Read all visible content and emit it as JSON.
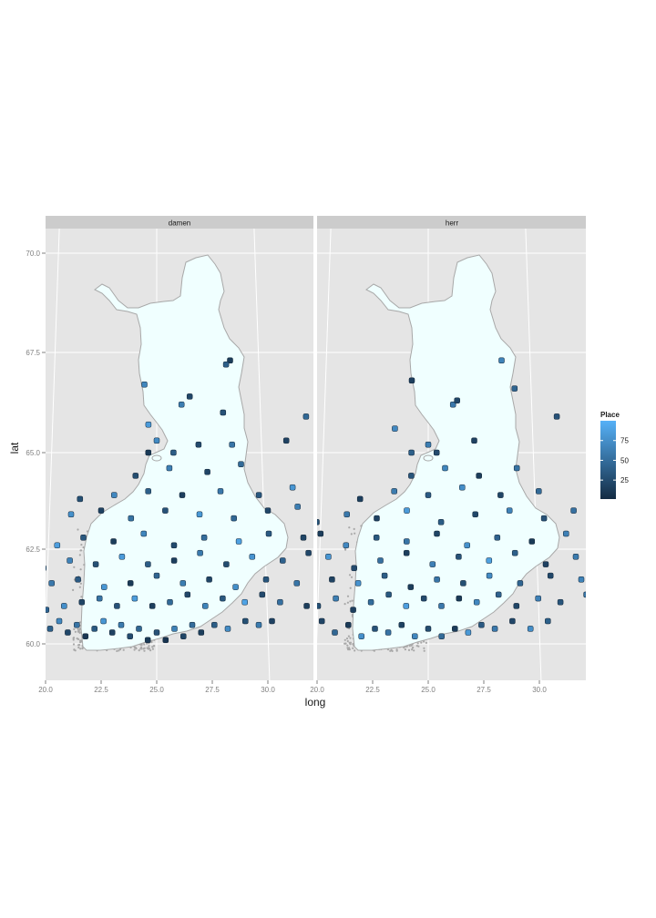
{
  "chart_data": {
    "type": "scatter",
    "facets": [
      "damen",
      "herr"
    ],
    "xlabel": "long",
    "ylabel": "lat",
    "xlim": [
      20.0,
      32.0
    ],
    "ylim": [
      59.2,
      70.8
    ],
    "x_ticks": [
      20.0,
      22.5,
      25.0,
      27.5,
      30.0
    ],
    "y_ticks": [
      60.0,
      62.5,
      65.0,
      67.5,
      70.0
    ],
    "x_tick_labels": [
      "20.0",
      "22.5",
      "25.0",
      "27.5",
      "30.0"
    ],
    "y_tick_labels": [
      "60.0",
      "62.5",
      "65.0",
      "67.5",
      "70.0"
    ],
    "grid": true,
    "background_map": {
      "fill": "#f0ffff",
      "border": "#a8a8a8",
      "archipelago": "#a8a8a8"
    },
    "legend": {
      "title": "Place",
      "placement": "right",
      "ticks": [
        25,
        50,
        75
      ],
      "tick_labels": [
        "25",
        "50",
        "75"
      ],
      "range": [
        1,
        100
      ],
      "color_low": "#132b43",
      "color_high": "#56b1f7"
    },
    "series": [
      {
        "name": "damen",
        "points": [
          [
            22.3,
            60.5,
            15
          ],
          [
            22.6,
            60.4,
            40
          ],
          [
            22.8,
            60.6,
            70
          ],
          [
            23.0,
            60.3,
            22
          ],
          [
            23.2,
            60.5,
            55
          ],
          [
            23.4,
            60.2,
            10
          ],
          [
            23.6,
            60.4,
            35
          ],
          [
            23.8,
            60.6,
            80
          ],
          [
            24.0,
            60.3,
            18
          ],
          [
            24.2,
            60.5,
            60
          ],
          [
            24.4,
            60.2,
            25
          ],
          [
            24.6,
            60.4,
            45
          ],
          [
            24.8,
            60.1,
            12
          ],
          [
            25.0,
            60.3,
            30
          ],
          [
            25.2,
            60.1,
            8
          ],
          [
            25.4,
            60.4,
            65
          ],
          [
            25.6,
            60.2,
            20
          ],
          [
            25.8,
            60.5,
            50
          ],
          [
            26.0,
            60.3,
            15
          ],
          [
            26.3,
            60.5,
            38
          ],
          [
            26.6,
            60.4,
            72
          ],
          [
            27.0,
            60.6,
            28
          ],
          [
            27.3,
            60.5,
            60
          ],
          [
            27.6,
            60.6,
            18
          ],
          [
            22.5,
            60.9,
            42
          ],
          [
            22.9,
            61.0,
            75
          ],
          [
            23.3,
            61.1,
            20
          ],
          [
            23.7,
            61.2,
            55
          ],
          [
            24.1,
            61.0,
            30
          ],
          [
            24.5,
            61.2,
            85
          ],
          [
            24.9,
            61.0,
            16
          ],
          [
            25.3,
            61.1,
            48
          ],
          [
            25.7,
            61.3,
            22
          ],
          [
            26.1,
            61.0,
            66
          ],
          [
            26.5,
            61.2,
            34
          ],
          [
            27.0,
            61.1,
            90
          ],
          [
            27.4,
            61.3,
            24
          ],
          [
            27.8,
            61.1,
            52
          ],
          [
            28.4,
            61.0,
            14
          ],
          [
            28.7,
            61.2,
            70
          ],
          [
            22.2,
            61.4,
            26
          ],
          [
            22.6,
            61.6,
            58
          ],
          [
            23.2,
            61.7,
            36
          ],
          [
            23.8,
            61.5,
            80
          ],
          [
            24.4,
            61.6,
            12
          ],
          [
            25.0,
            61.8,
            44
          ],
          [
            25.6,
            61.6,
            62
          ],
          [
            26.2,
            61.7,
            20
          ],
          [
            26.8,
            61.5,
            74
          ],
          [
            27.5,
            61.7,
            32
          ],
          [
            28.2,
            61.6,
            56
          ],
          [
            28.8,
            61.7,
            18
          ],
          [
            22.4,
            62.0,
            48
          ],
          [
            23.0,
            62.2,
            66
          ],
          [
            23.6,
            62.1,
            28
          ],
          [
            24.2,
            62.3,
            84
          ],
          [
            24.8,
            62.1,
            38
          ],
          [
            25.4,
            62.2,
            16
          ],
          [
            26.0,
            62.4,
            60
          ],
          [
            26.6,
            62.1,
            26
          ],
          [
            27.2,
            62.3,
            78
          ],
          [
            27.9,
            62.2,
            42
          ],
          [
            28.5,
            62.4,
            22
          ],
          [
            29.2,
            62.5,
            64
          ],
          [
            21.8,
            62.3,
            30
          ],
          [
            22.1,
            62.8,
            52
          ],
          [
            22.7,
            62.6,
            86
          ],
          [
            23.3,
            62.8,
            34
          ],
          [
            24.0,
            62.7,
            14
          ],
          [
            24.7,
            62.9,
            68
          ],
          [
            25.4,
            62.6,
            24
          ],
          [
            26.1,
            62.8,
            50
          ],
          [
            26.9,
            62.7,
            88
          ],
          [
            27.6,
            62.9,
            36
          ],
          [
            28.4,
            62.8,
            20
          ],
          [
            29.6,
            62.9,
            58
          ],
          [
            22.3,
            63.2,
            44
          ],
          [
            23.0,
            63.4,
            76
          ],
          [
            23.7,
            63.5,
            18
          ],
          [
            24.4,
            63.3,
            54
          ],
          [
            25.2,
            63.5,
            30
          ],
          [
            26.0,
            63.4,
            82
          ],
          [
            26.8,
            63.3,
            46
          ],
          [
            27.6,
            63.5,
            22
          ],
          [
            28.3,
            63.6,
            62
          ],
          [
            23.2,
            63.8,
            28
          ],
          [
            24.0,
            63.9,
            70
          ],
          [
            24.8,
            64.0,
            40
          ],
          [
            25.6,
            63.9,
            16
          ],
          [
            26.5,
            64.0,
            58
          ],
          [
            27.4,
            63.9,
            34
          ],
          [
            28.2,
            64.1,
            80
          ],
          [
            24.5,
            64.4,
            26
          ],
          [
            25.3,
            64.6,
            64
          ],
          [
            26.2,
            64.5,
            20
          ],
          [
            27.0,
            64.7,
            48
          ],
          [
            24.8,
            65.0,
            12
          ],
          [
            25.4,
            65.0,
            38
          ],
          [
            25.0,
            65.3,
            72
          ],
          [
            26.0,
            65.2,
            24
          ],
          [
            26.8,
            65.2,
            56
          ],
          [
            28.1,
            65.3,
            18
          ],
          [
            24.8,
            65.7,
            84
          ],
          [
            26.6,
            66.0,
            30
          ],
          [
            25.6,
            66.2,
            62
          ],
          [
            25.8,
            66.4,
            22
          ],
          [
            28.6,
            65.9,
            46
          ],
          [
            24.7,
            66.7,
            68
          ],
          [
            26.8,
            67.3,
            14
          ],
          [
            26.7,
            67.2,
            40
          ]
        ]
      },
      {
        "name": "herr",
        "points": [
          [
            22.3,
            60.4,
            60
          ],
          [
            22.6,
            60.6,
            20
          ],
          [
            22.9,
            60.3,
            45
          ],
          [
            23.2,
            60.5,
            12
          ],
          [
            23.5,
            60.2,
            75
          ],
          [
            23.8,
            60.4,
            30
          ],
          [
            24.1,
            60.3,
            55
          ],
          [
            24.4,
            60.5,
            18
          ],
          [
            24.7,
            60.2,
            68
          ],
          [
            25.0,
            60.4,
            26
          ],
          [
            25.3,
            60.2,
            48
          ],
          [
            25.6,
            60.4,
            14
          ],
          [
            25.9,
            60.3,
            82
          ],
          [
            26.2,
            60.5,
            36
          ],
          [
            26.5,
            60.4,
            58
          ],
          [
            26.9,
            60.6,
            22
          ],
          [
            27.3,
            60.4,
            74
          ],
          [
            27.7,
            60.6,
            40
          ],
          [
            22.5,
            61.0,
            28
          ],
          [
            22.9,
            61.2,
            62
          ],
          [
            23.3,
            60.9,
            16
          ],
          [
            23.7,
            61.1,
            50
          ],
          [
            24.1,
            61.3,
            34
          ],
          [
            24.5,
            61.0,
            86
          ],
          [
            24.9,
            61.2,
            24
          ],
          [
            25.3,
            61.0,
            58
          ],
          [
            25.7,
            61.2,
            12
          ],
          [
            26.1,
            61.1,
            70
          ],
          [
            26.6,
            61.3,
            42
          ],
          [
            27.0,
            61.0,
            20
          ],
          [
            27.5,
            61.2,
            64
          ],
          [
            28.0,
            61.1,
            32
          ],
          [
            28.6,
            61.3,
            54
          ],
          [
            22.3,
            61.5,
            46
          ],
          [
            22.8,
            61.7,
            18
          ],
          [
            23.4,
            61.6,
            78
          ],
          [
            24.0,
            61.8,
            38
          ],
          [
            24.6,
            61.5,
            14
          ],
          [
            25.2,
            61.7,
            56
          ],
          [
            25.8,
            61.6,
            28
          ],
          [
            26.4,
            61.8,
            72
          ],
          [
            27.1,
            61.6,
            44
          ],
          [
            27.8,
            61.8,
            22
          ],
          [
            28.5,
            61.7,
            66
          ],
          [
            22.1,
            62.1,
            36
          ],
          [
            22.7,
            62.3,
            80
          ],
          [
            23.3,
            62.0,
            24
          ],
          [
            23.9,
            62.2,
            52
          ],
          [
            24.5,
            62.4,
            16
          ],
          [
            25.1,
            62.1,
            64
          ],
          [
            25.7,
            62.3,
            30
          ],
          [
            26.4,
            62.2,
            88
          ],
          [
            27.0,
            62.4,
            40
          ],
          [
            27.7,
            62.1,
            18
          ],
          [
            28.4,
            62.3,
            60
          ],
          [
            29.3,
            62.4,
            26
          ],
          [
            21.9,
            62.7,
            50
          ],
          [
            22.5,
            62.9,
            14
          ],
          [
            23.1,
            62.6,
            70
          ],
          [
            23.8,
            62.8,
            34
          ],
          [
            24.5,
            62.7,
            56
          ],
          [
            25.2,
            62.9,
            20
          ],
          [
            25.9,
            62.6,
            76
          ],
          [
            26.6,
            62.8,
            42
          ],
          [
            27.4,
            62.7,
            12
          ],
          [
            28.2,
            62.9,
            64
          ],
          [
            22.4,
            63.2,
            28
          ],
          [
            23.1,
            63.4,
            58
          ],
          [
            23.8,
            63.3,
            18
          ],
          [
            24.5,
            63.5,
            84
          ],
          [
            25.3,
            63.2,
            38
          ],
          [
            26.1,
            63.4,
            22
          ],
          [
            26.9,
            63.5,
            66
          ],
          [
            27.7,
            63.3,
            30
          ],
          [
            28.4,
            63.5,
            52
          ],
          [
            23.4,
            63.8,
            16
          ],
          [
            24.2,
            64.0,
            60
          ],
          [
            25.0,
            63.9,
            36
          ],
          [
            25.8,
            64.1,
            74
          ],
          [
            26.7,
            63.9,
            20
          ],
          [
            27.6,
            64.0,
            48
          ],
          [
            24.6,
            64.4,
            32
          ],
          [
            25.4,
            64.6,
            68
          ],
          [
            26.2,
            64.4,
            14
          ],
          [
            27.1,
            64.6,
            54
          ],
          [
            24.6,
            65.0,
            40
          ],
          [
            25.2,
            65.0,
            24
          ],
          [
            25.0,
            65.2,
            62
          ],
          [
            26.1,
            65.3,
            18
          ],
          [
            24.2,
            65.6,
            70
          ],
          [
            28.1,
            65.9,
            30
          ],
          [
            25.6,
            66.2,
            58
          ],
          [
            25.7,
            66.3,
            22
          ],
          [
            27.1,
            66.6,
            44
          ],
          [
            24.6,
            66.8,
            16
          ],
          [
            26.8,
            67.3,
            66
          ]
        ]
      }
    ]
  }
}
